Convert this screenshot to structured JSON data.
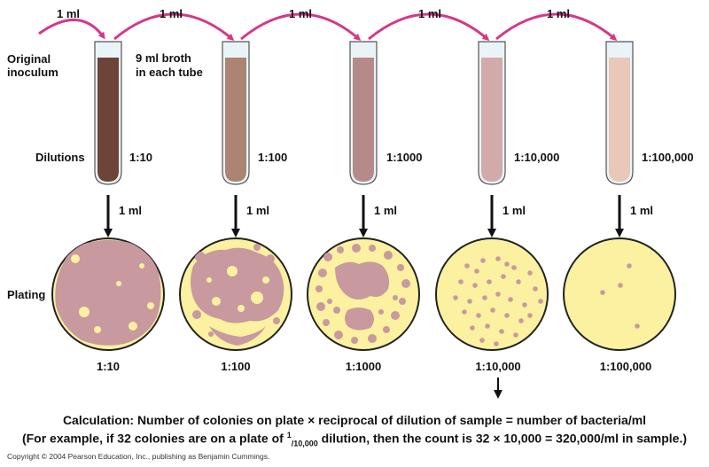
{
  "transfer_label": "1 ml",
  "original_inoculum": [
    "Original",
    "inoculum"
  ],
  "broth_note": [
    "9 ml broth",
    "in each tube"
  ],
  "dilutions_label": "Dilutions",
  "plating_label": "Plating",
  "tubes": [
    {
      "dilution": "1:10",
      "fill": "#6e4338"
    },
    {
      "dilution": "1:100",
      "fill": "#ad8474"
    },
    {
      "dilution": "1:1000",
      "fill": "#b78a8a"
    },
    {
      "dilution": "1:10,000",
      "fill": "#d2aaa9"
    },
    {
      "dilution": "1:100,000",
      "fill": "#e9c7b9"
    }
  ],
  "plates": [
    {
      "dilution": "1:10"
    },
    {
      "dilution": "1:100"
    },
    {
      "dilution": "1:1000"
    },
    {
      "dilution": "1:10,000"
    },
    {
      "dilution": "1:100,000"
    }
  ],
  "calculation": "Calculation: Number of colonies on plate × reciprocal of dilution of sample = number of bacteria/ml",
  "example": {
    "before": "(For example, if 32 colonies are on a plate of ",
    "frac_num": "1",
    "frac_den": "/10,000",
    "after": " dilution, then the count is 32 × 10,000 = 320,000/ml in sample.)"
  },
  "copyright": "Copyright © 2004 Pearson Education, Inc., publishing as Benjamin Cummings.",
  "colors": {
    "arrow_pink": "#d6378a",
    "plate_agar": "#fbf1a0",
    "plate_rim": "#222222",
    "colony": "#c8999e",
    "tube_glass": "#eaf4f8"
  }
}
